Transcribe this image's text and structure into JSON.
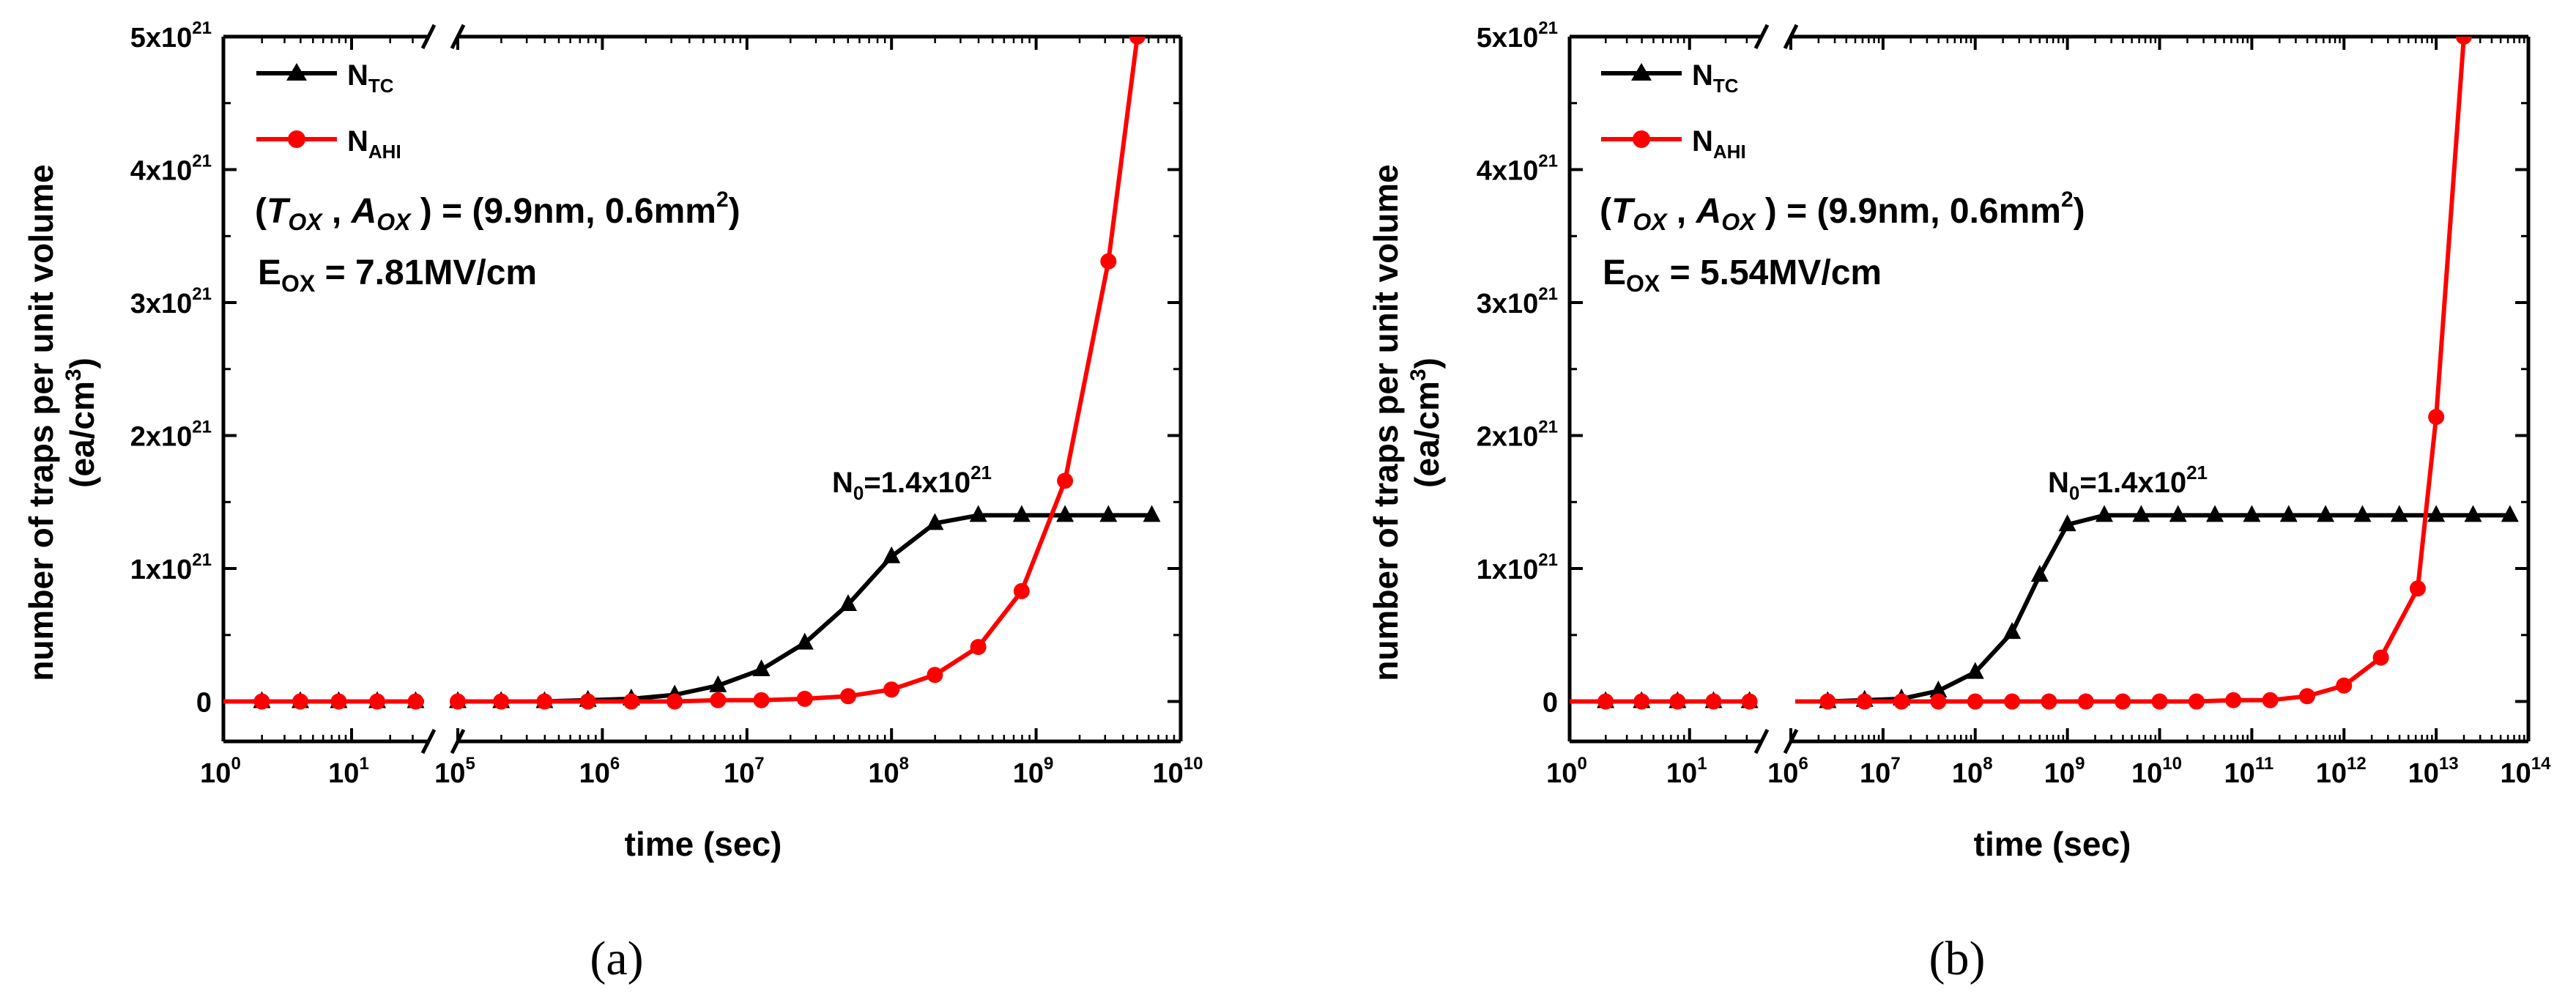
{
  "figure": {
    "colors": {
      "tc": "#000000",
      "ahi": "#ff0000",
      "axis": "#000000"
    }
  },
  "chart_data": [
    {
      "type": "line",
      "panel_label": "(a)",
      "xlabel": "time (sec)",
      "ylabel_line1": "number of traps per unit volume",
      "ylabel_line2": "(ea/cm",
      "ylabel_sup": "3",
      "ylabel_close": ")",
      "x_scale": "log-broken",
      "x_break": {
        "left_exponents": [
          0,
          1
        ],
        "right_exponents": [
          5,
          6,
          7,
          8,
          9,
          10
        ]
      },
      "x_tick_base": "10",
      "x_tick_exponents": [
        "0",
        "1",
        "5",
        "6",
        "7",
        "8",
        "9",
        "10"
      ],
      "ylim": [
        -0.3,
        5
      ],
      "y_ticks": [
        {
          "value": 0,
          "text": "0",
          "sup": ""
        },
        {
          "value": 1,
          "text": "1x10",
          "sup": "21"
        },
        {
          "value": 2,
          "text": "2x10",
          "sup": "21"
        },
        {
          "value": 3,
          "text": "3x10",
          "sup": "21"
        },
        {
          "value": 4,
          "text": "4x10",
          "sup": "21"
        },
        {
          "value": 5,
          "text": "5x10",
          "sup": "21"
        }
      ],
      "y_units": "x10^21 ea/cm^3",
      "legend": {
        "location": "top-left",
        "entries": [
          {
            "main": "N",
            "sub": "TC"
          },
          {
            "main": "N",
            "sub": "AHI"
          }
        ]
      },
      "annotations": {
        "params_open": "(",
        "tox_T": "T",
        "tox_sub": "OX",
        "comma": " , ",
        "aox_A": "A",
        "aox_sub": "OX",
        "params_value": " ) = (9.9nm, 0.6mm",
        "params_sup": "2",
        "params_close": ")",
        "e_main": "E",
        "e_sub": "OX",
        "e_value": " = 7.81MV/cm",
        "n0_main": "N",
        "n0_sub": "0",
        "n0_value": "=1.4x10",
        "n0_sup": "21"
      },
      "series": [
        {
          "name": "N_TC",
          "marker": "triangle",
          "points": [
            [
              0.3,
              0
            ],
            [
              0.6,
              0
            ],
            [
              0.9,
              0
            ],
            [
              1.2,
              0
            ],
            [
              1.5,
              0
            ],
            [
              5.0,
              0
            ],
            [
              5.3,
              0
            ],
            [
              5.6,
              0
            ],
            [
              5.9,
              0.01
            ],
            [
              6.2,
              0.02
            ],
            [
              6.5,
              0.05
            ],
            [
              6.8,
              0.12
            ],
            [
              7.1,
              0.24
            ],
            [
              7.4,
              0.44
            ],
            [
              7.7,
              0.73
            ],
            [
              8.0,
              1.09
            ],
            [
              8.3,
              1.34
            ],
            [
              8.6,
              1.4
            ],
            [
              8.9,
              1.4
            ],
            [
              9.2,
              1.4
            ],
            [
              9.5,
              1.4
            ],
            [
              9.8,
              1.4
            ]
          ]
        },
        {
          "name": "N_AHI",
          "marker": "circle",
          "points": [
            [
              0.3,
              0
            ],
            [
              0.6,
              0
            ],
            [
              0.9,
              0
            ],
            [
              1.2,
              0
            ],
            [
              1.5,
              0
            ],
            [
              5.0,
              0
            ],
            [
              5.3,
              0
            ],
            [
              5.6,
              0
            ],
            [
              5.9,
              0
            ],
            [
              6.2,
              0
            ],
            [
              6.5,
              0
            ],
            [
              6.8,
              0.01
            ],
            [
              7.1,
              0.01
            ],
            [
              7.4,
              0.02
            ],
            [
              7.7,
              0.04
            ],
            [
              8.0,
              0.09
            ],
            [
              8.3,
              0.2
            ],
            [
              8.6,
              0.41
            ],
            [
              8.9,
              0.83
            ],
            [
              9.2,
              1.66
            ],
            [
              9.5,
              3.31
            ],
            [
              9.7,
              5.0
            ]
          ]
        }
      ]
    },
    {
      "type": "line",
      "panel_label": "(b)",
      "xlabel": "time (sec)",
      "ylabel_line1": "number of traps per unit volume",
      "ylabel_line2": "(ea/cm",
      "ylabel_sup": "3",
      "ylabel_close": ")",
      "x_scale": "log-broken",
      "x_break": {
        "left_exponents": [
          0,
          1
        ],
        "right_exponents": [
          6,
          7,
          8,
          9,
          10,
          11,
          12,
          13,
          14
        ]
      },
      "x_tick_base": "10",
      "x_tick_exponents": [
        "0",
        "1",
        "6",
        "7",
        "8",
        "9",
        "10",
        "11",
        "12",
        "13",
        "14"
      ],
      "ylim": [
        -0.3,
        5
      ],
      "y_ticks": [
        {
          "value": 0,
          "text": "0",
          "sup": ""
        },
        {
          "value": 1,
          "text": "1x10",
          "sup": "21"
        },
        {
          "value": 2,
          "text": "2x10",
          "sup": "21"
        },
        {
          "value": 3,
          "text": "3x10",
          "sup": "21"
        },
        {
          "value": 4,
          "text": "4x10",
          "sup": "21"
        },
        {
          "value": 5,
          "text": "5x10",
          "sup": "21"
        }
      ],
      "y_units": "x10^21 ea/cm^3",
      "legend": {
        "location": "top-left",
        "entries": [
          {
            "main": "N",
            "sub": "TC"
          },
          {
            "main": "N",
            "sub": "AHI"
          }
        ]
      },
      "annotations": {
        "params_open": "(",
        "tox_T": "T",
        "tox_sub": "OX",
        "comma": " , ",
        "aox_A": "A",
        "aox_sub": "OX",
        "params_value": " ) = (9.9nm, 0.6mm",
        "params_sup": "2",
        "params_close": ")",
        "e_main": "E",
        "e_sub": "OX",
        "e_value": " = 5.54MV/cm",
        "n0_main": "N",
        "n0_sub": "0",
        "n0_value": "=1.4x10",
        "n0_sup": "21"
      },
      "series": [
        {
          "name": "N_TC",
          "marker": "triangle",
          "points": [
            [
              0.3,
              0
            ],
            [
              0.6,
              0
            ],
            [
              0.9,
              0
            ],
            [
              1.2,
              0
            ],
            [
              1.5,
              0
            ],
            [
              6.4,
              0
            ],
            [
              6.8,
              0.01
            ],
            [
              7.2,
              0.02
            ],
            [
              7.6,
              0.08
            ],
            [
              8.0,
              0.22
            ],
            [
              8.4,
              0.52
            ],
            [
              8.7,
              0.95
            ],
            [
              9.0,
              1.33
            ],
            [
              9.4,
              1.4
            ],
            [
              9.8,
              1.4
            ],
            [
              10.2,
              1.4
            ],
            [
              10.6,
              1.4
            ],
            [
              11.0,
              1.4
            ],
            [
              11.4,
              1.4
            ],
            [
              11.8,
              1.4
            ],
            [
              12.2,
              1.4
            ],
            [
              12.6,
              1.4
            ],
            [
              13.0,
              1.4
            ],
            [
              13.4,
              1.4
            ],
            [
              13.8,
              1.4
            ]
          ]
        },
        {
          "name": "N_AHI",
          "marker": "circle",
          "points": [
            [
              0.3,
              0
            ],
            [
              0.6,
              0
            ],
            [
              0.9,
              0
            ],
            [
              1.2,
              0
            ],
            [
              1.5,
              0
            ],
            [
              6.4,
              0
            ],
            [
              6.8,
              0
            ],
            [
              7.2,
              0
            ],
            [
              7.6,
              0
            ],
            [
              8.0,
              0
            ],
            [
              8.4,
              0
            ],
            [
              8.8,
              0
            ],
            [
              9.2,
              0
            ],
            [
              9.6,
              0
            ],
            [
              10.0,
              0
            ],
            [
              10.4,
              0
            ],
            [
              10.8,
              0.01
            ],
            [
              11.2,
              0.01
            ],
            [
              11.6,
              0.04
            ],
            [
              12.0,
              0.12
            ],
            [
              12.4,
              0.33
            ],
            [
              12.8,
              0.85
            ],
            [
              13.0,
              2.14
            ],
            [
              13.3,
              5.0
            ]
          ]
        }
      ]
    }
  ]
}
